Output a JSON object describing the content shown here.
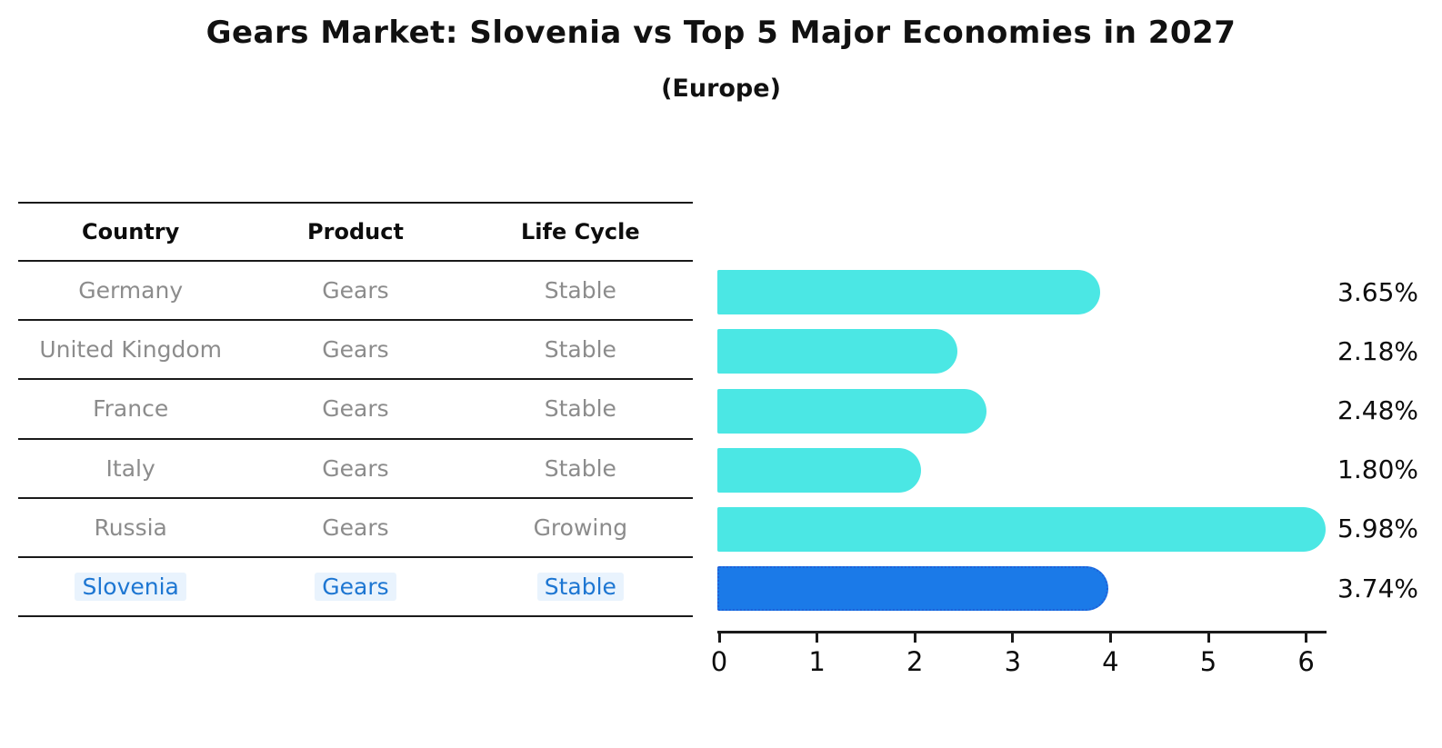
{
  "chart": {
    "title": "Gears Market: Slovenia vs Top 5 Major Economies in 2027",
    "subtitle": "(Europe)"
  },
  "table": {
    "columns": [
      "Country",
      "Product",
      "Life Cycle"
    ],
    "rows": [
      {
        "country": "Germany",
        "product": "Gears",
        "life_cycle": "Stable",
        "highlight": false
      },
      {
        "country": "United Kingdom",
        "product": "Gears",
        "life_cycle": "Stable",
        "highlight": false
      },
      {
        "country": "France",
        "product": "Gears",
        "life_cycle": "Stable",
        "highlight": false
      },
      {
        "country": "Italy",
        "product": "Gears",
        "life_cycle": "Stable",
        "highlight": false
      },
      {
        "country": "Russia",
        "product": "Gears",
        "life_cycle": "Growing",
        "highlight": false
      },
      {
        "country": "Slovenia",
        "product": "Gears",
        "life_cycle": "Stable",
        "highlight": true
      }
    ]
  },
  "chart_data": {
    "type": "bar",
    "orientation": "horizontal",
    "title": "Gears Market: Slovenia vs Top 5 Major Economies in 2027",
    "subtitle": "(Europe)",
    "categories": [
      "Germany",
      "United Kingdom",
      "France",
      "Italy",
      "Russia",
      "Slovenia"
    ],
    "values": [
      3.65,
      2.18,
      2.48,
      1.8,
      5.98,
      3.74
    ],
    "value_labels": [
      "3.65%",
      "2.18%",
      "2.48%",
      "1.80%",
      "5.98%",
      "3.74%"
    ],
    "x_ticks": [
      0,
      1,
      2,
      3,
      4,
      5,
      6
    ],
    "xlim": [
      0,
      6.3
    ],
    "grid": false,
    "legend": "none",
    "highlight_index": 5,
    "colors": {
      "bar": "#4be7e4",
      "highlight_bar": "#1b7ae8",
      "highlight_bar_border": "#2060d8",
      "highlight_text": "#1d76d2",
      "highlight_text_bg": "#e9f3fd",
      "table_text": "#8c8c8c",
      "axis": "#1a1a1a"
    }
  }
}
